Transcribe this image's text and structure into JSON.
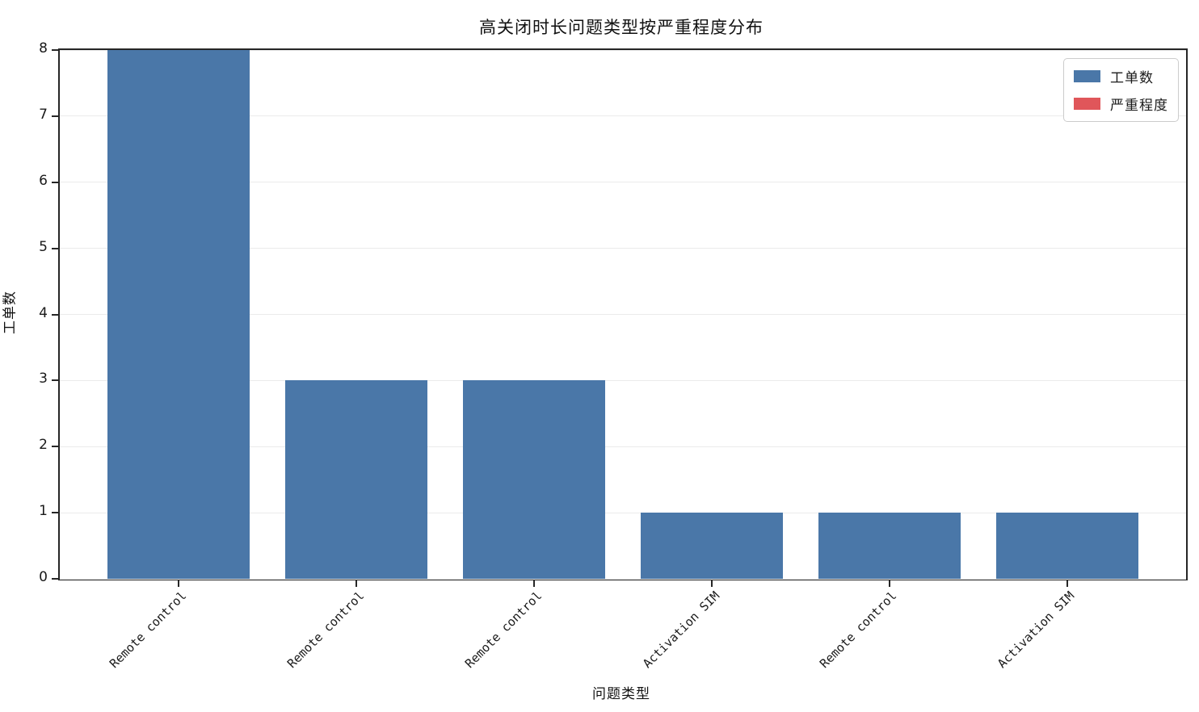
{
  "page": {
    "background": "#ffffff"
  },
  "chart_data": {
    "type": "bar",
    "title": "高关闭时长问题类型按严重程度分布",
    "xlabel": "问题类型",
    "ylabel": "工单数",
    "categories": [
      "Remote control",
      "Remote control",
      "Remote control",
      "Activation SIM",
      "Remote control",
      "Activation SIM"
    ],
    "series": [
      {
        "name": "工单数",
        "color": "#4a77a8",
        "values": [
          8,
          3,
          3,
          1,
          1,
          1
        ]
      },
      {
        "name": "严重程度",
        "color": "#e0565a",
        "values": []
      }
    ],
    "ylim": [
      0,
      8
    ],
    "yticks": [
      0,
      1,
      2,
      3,
      4,
      5,
      6,
      7,
      8
    ],
    "xlim": [
      -0.67,
      5.67
    ],
    "bar_width": 0.8,
    "grid": "horizontal",
    "legend_position": "upper-right",
    "x_tick_rotation": 45,
    "colors": {
      "spine": "#262626",
      "grid": "#ebebeb",
      "tick_text": "#1a1a1a"
    }
  }
}
